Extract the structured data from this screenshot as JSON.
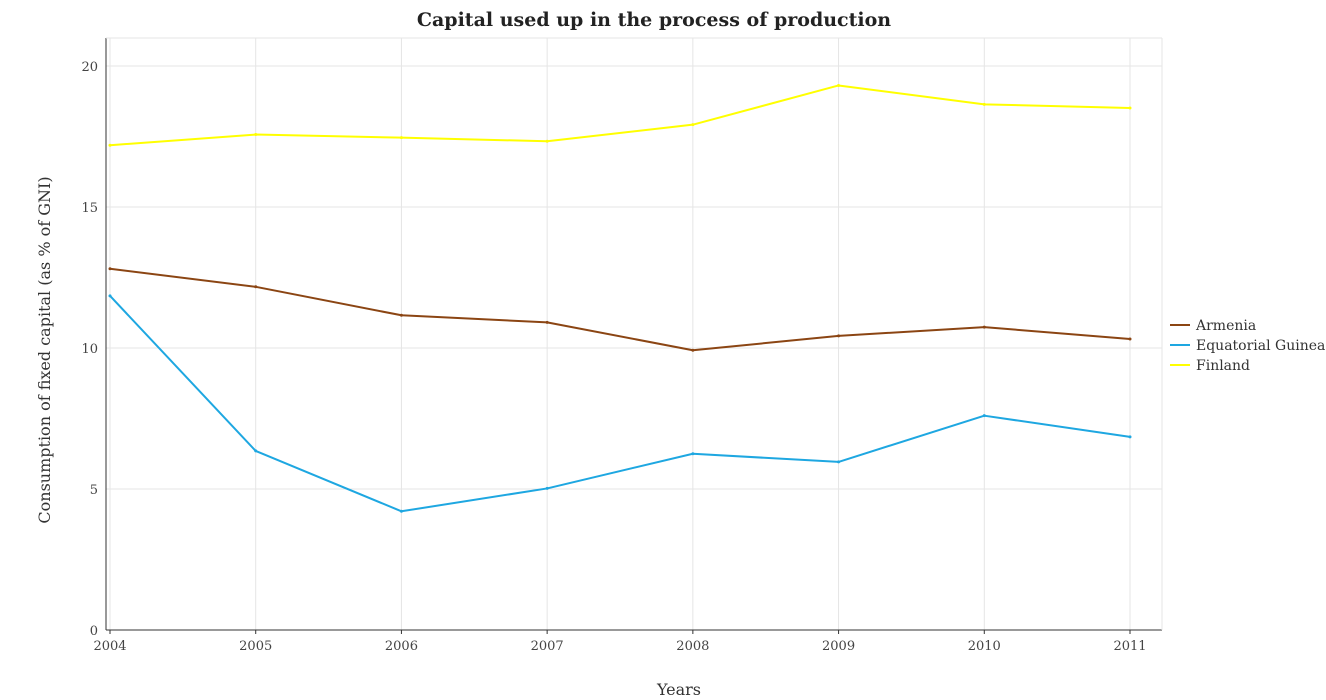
{
  "chart_data": {
    "type": "line",
    "title": "Capital used up in the process of production",
    "xlabel": "Years",
    "ylabel": "Consumption of fixed capital (as % of GNI)",
    "categories": [
      "2004",
      "2005",
      "2006",
      "2007",
      "2008",
      "2009",
      "2010",
      "2011"
    ],
    "ylim": [
      0,
      20
    ],
    "yticks": [
      "0",
      "5",
      "10",
      "15",
      "20"
    ],
    "grid": true,
    "legend_position": "right",
    "series": [
      {
        "name": "Armenia",
        "color": "#8B4513",
        "values": [
          12.81,
          12.17,
          11.16,
          10.91,
          9.92,
          10.43,
          10.74,
          10.32
        ]
      },
      {
        "name": "Equatorial Guinea",
        "color": "#1EA7E1",
        "values": [
          11.85,
          6.35,
          4.21,
          5.02,
          6.25,
          5.96,
          7.6,
          6.85
        ]
      },
      {
        "name": "Finland",
        "color": "#FFFF00",
        "values": [
          17.19,
          17.57,
          17.46,
          17.33,
          17.92,
          19.31,
          18.64,
          18.51
        ]
      }
    ]
  }
}
